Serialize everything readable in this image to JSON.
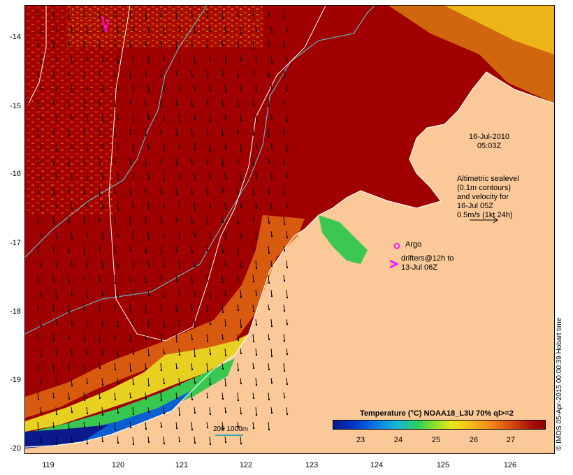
{
  "map": {
    "y_axis_labels": [
      "-14",
      "-15",
      "-16",
      "-17",
      "-18",
      "-19",
      "-20"
    ],
    "x_axis_labels": [
      "119",
      "120",
      "121",
      "122",
      "123",
      "124",
      "125",
      "126"
    ],
    "timestamp_date": "16-Jul-2010",
    "timestamp_time": "05:03Z",
    "altimetry_note": [
      "Altimetric sealevel",
      "(0.1m contours)",
      "and velocity for",
      "16-Jul 05Z",
      "0.5m/s (1kt 24h)"
    ],
    "argo_label": "Argo",
    "drifters_note": [
      "drifters@12h to",
      "13-Jul 06Z"
    ],
    "scale_label": "200  1000m",
    "legend": {
      "title": "Temperature (°C) NOAA18_L3U 70% ql>=2",
      "ticks": [
        "23",
        "24",
        "25",
        "26",
        "27"
      ]
    },
    "copyright": "© IMOS 05-Apr-2015 00:00:39 Hobart time",
    "colors": {
      "land": "#fbc898",
      "warm_sst": "#a00000",
      "contour": "#5fb8c0",
      "isobath": "#ffffff",
      "marker": "#ff00ff"
    },
    "icons": [
      "drifter-arrow-icon",
      "argo-float-icon",
      "velocity-scale-arrow-icon"
    ]
  }
}
